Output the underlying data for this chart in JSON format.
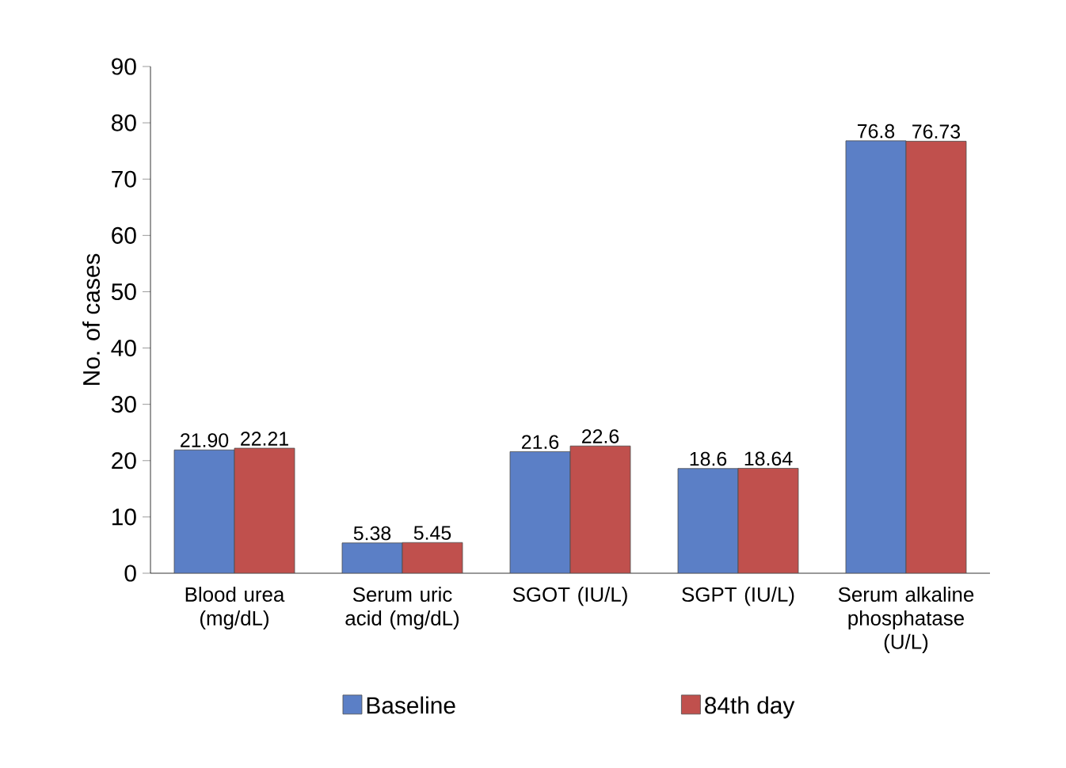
{
  "chart_data": {
    "type": "bar",
    "ylabel": "No. of cases",
    "categories": [
      "Blood urea (mg/dL)",
      "Serum uric acid (mg/dL)",
      "SGOT (IU/L)",
      "SGPT (IU/L)",
      "Serum alkaline phosphatase (U/L)"
    ],
    "series": [
      {
        "name": "Baseline",
        "color": "#5b7fc6",
        "values": [
          21.9,
          5.38,
          21.6,
          18.6,
          76.8
        ],
        "value_labels": [
          "21.90",
          "5.38",
          "21.6",
          "18.6",
          "76.8"
        ]
      },
      {
        "name": "84th day",
        "color": "#c0504d",
        "values": [
          22.21,
          5.45,
          22.6,
          18.64,
          76.73
        ],
        "value_labels": [
          "22.21",
          "5.45",
          "22.6",
          "18.64",
          "76.73"
        ]
      }
    ],
    "ylim": [
      0,
      90
    ],
    "yticks": [
      0,
      10,
      20,
      30,
      40,
      50,
      60,
      70,
      80,
      90
    ],
    "grid": false,
    "legend": "bottom"
  }
}
